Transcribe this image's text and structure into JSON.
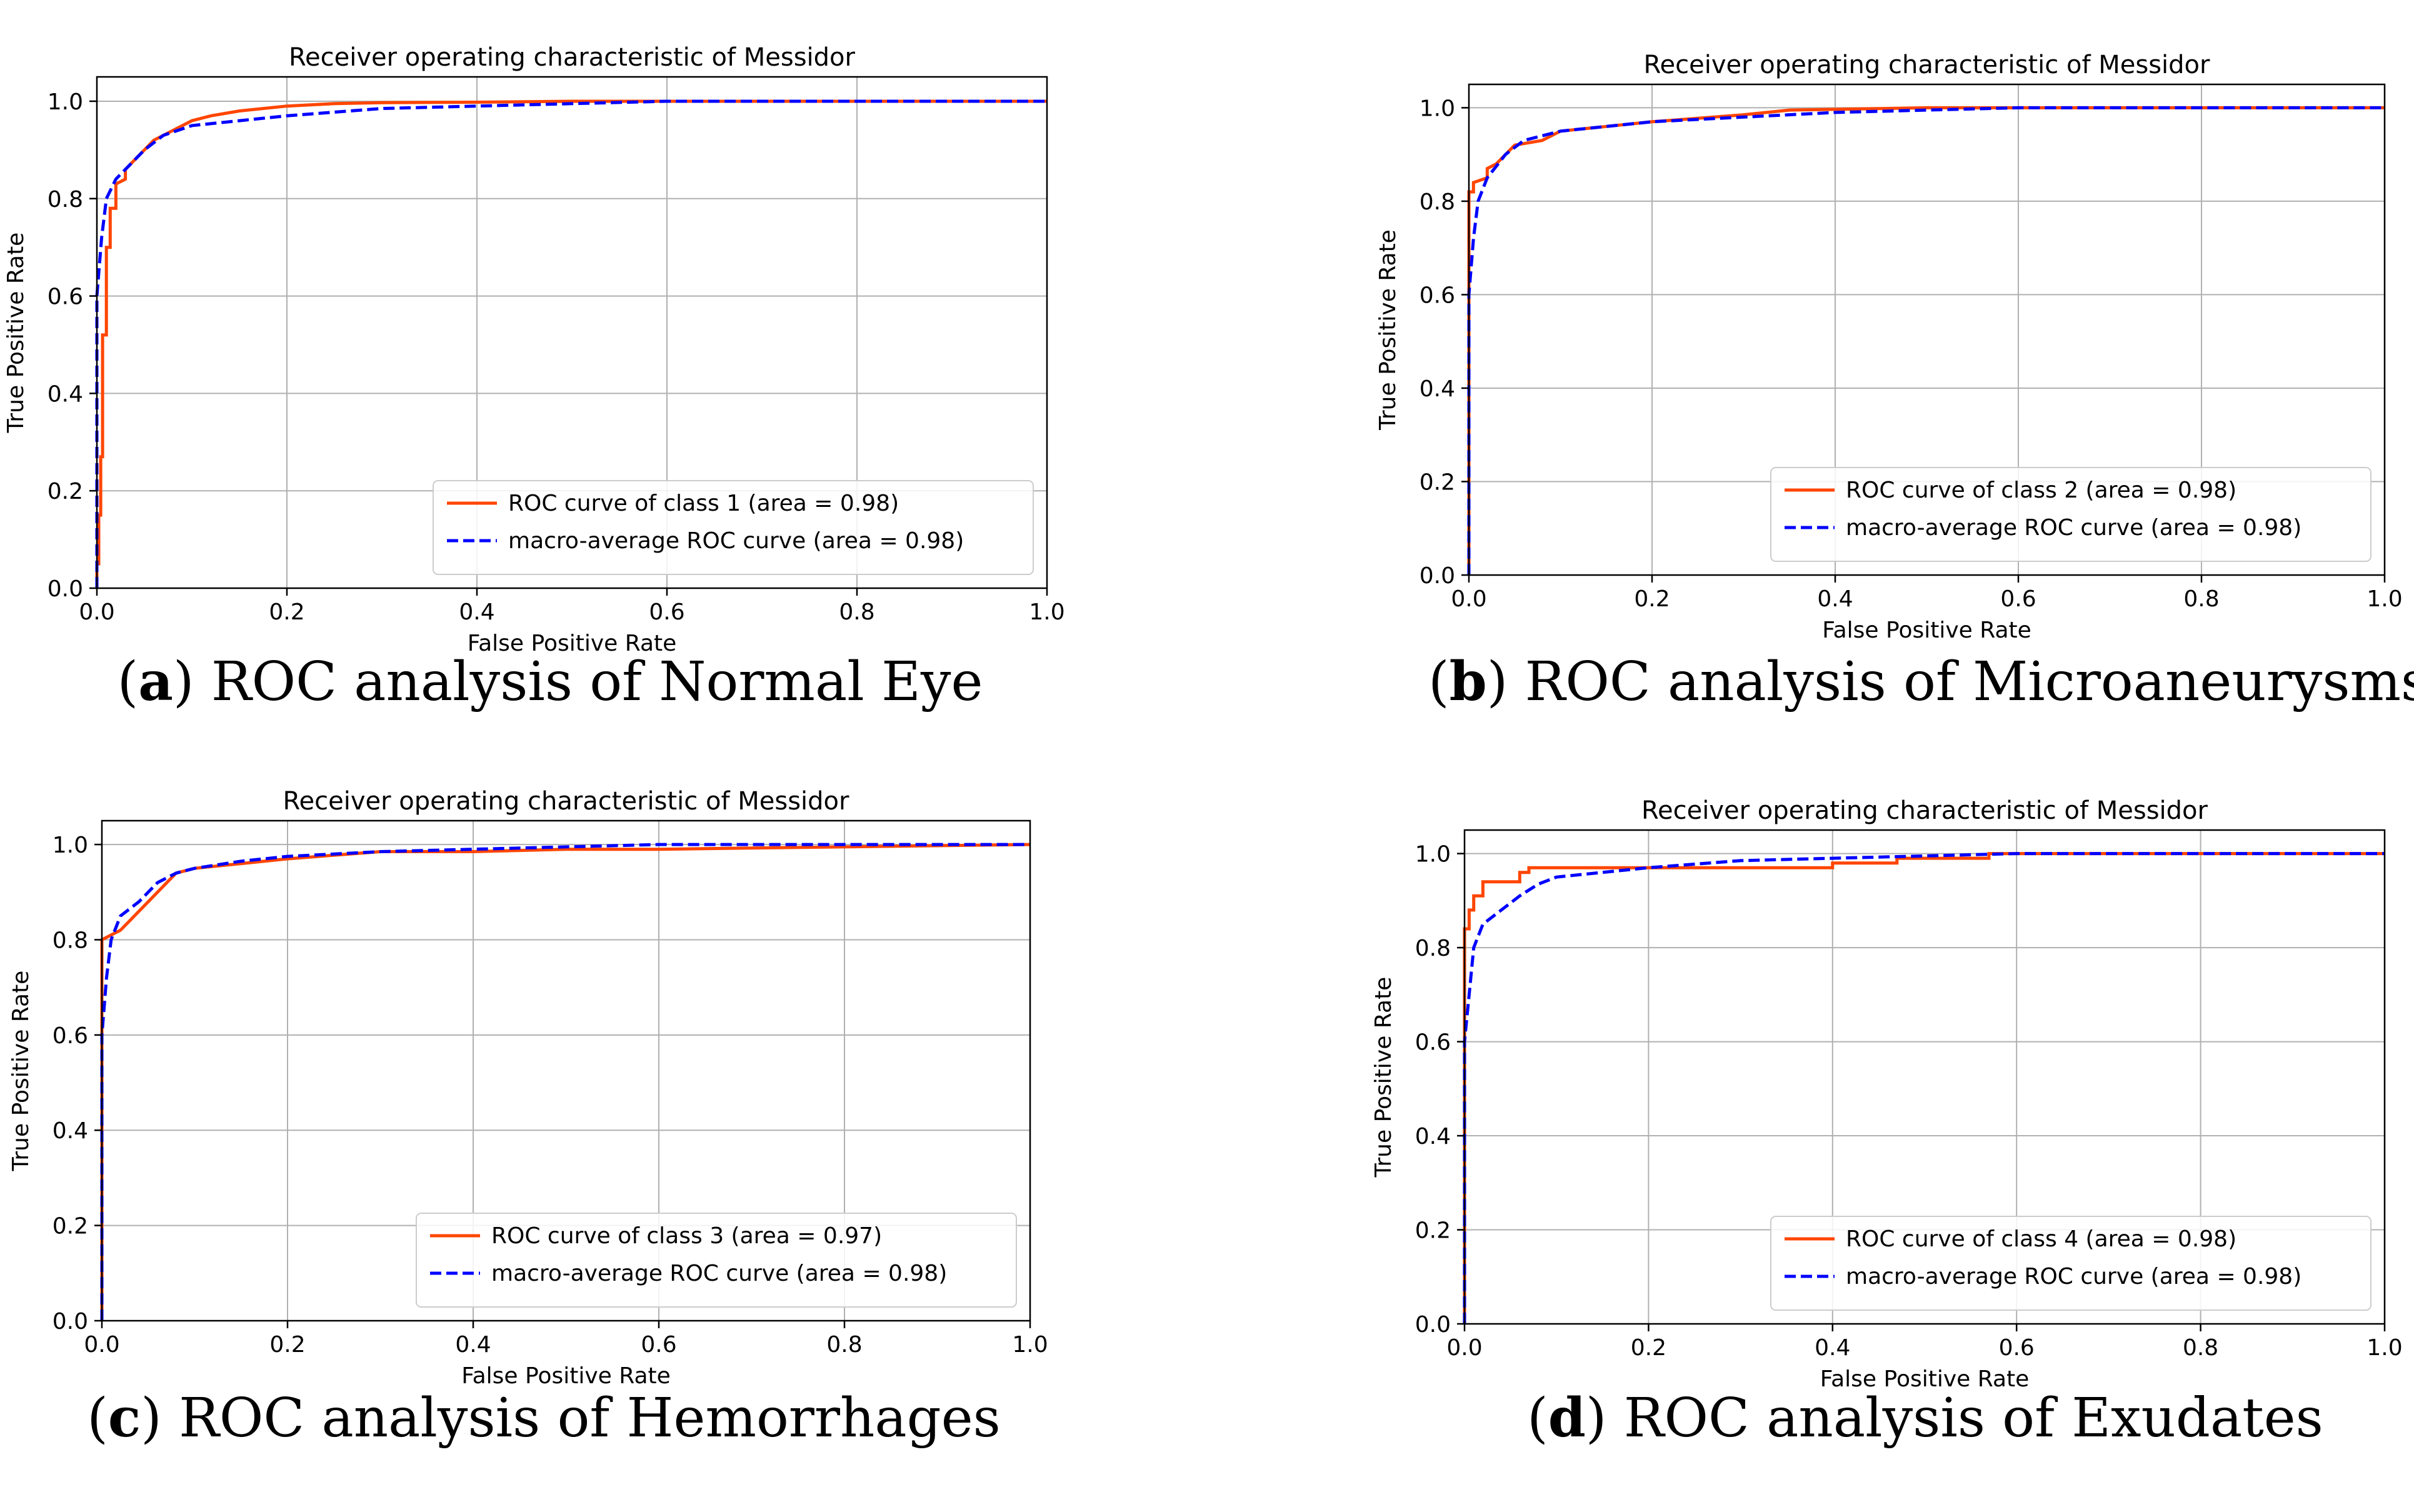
{
  "captions": [
    {
      "letter": "a",
      "text": "ROC analysis of Normal Eye"
    },
    {
      "letter": "b",
      "text": "ROC analysis of Microaneurysms"
    },
    {
      "letter": "c",
      "text": "ROC analysis of Hemorrhages"
    },
    {
      "letter": "d",
      "text": "ROC analysis of Exudates"
    }
  ],
  "chart_data": [
    {
      "type": "line",
      "title": "Receiver operating characteristic of Messidor",
      "xlabel": "False Positive Rate",
      "ylabel": "True Positive Rate",
      "xlim": [
        0,
        1.0
      ],
      "ylim": [
        0,
        1.05
      ],
      "xticks": [
        "0.0",
        "0.2",
        "0.4",
        "0.6",
        "0.8",
        "1.0"
      ],
      "yticks": [
        "0.0",
        "0.2",
        "0.4",
        "0.6",
        "0.8",
        "1.0"
      ],
      "grid": true,
      "legend": "lower-right",
      "series": [
        {
          "name": "ROC curve of class 1 (area = 0.98)",
          "color": "#ff4500",
          "style": "solid",
          "x": [
            0,
            0,
            0.002,
            0.002,
            0.004,
            0.004,
            0.006,
            0.006,
            0.01,
            0.01,
            0.014,
            0.014,
            0.02,
            0.02,
            0.03,
            0.03,
            0.04,
            0.05,
            0.06,
            0.08,
            0.1,
            0.12,
            0.15,
            0.2,
            0.25,
            0.3,
            0.4,
            0.5,
            0.6,
            0.8,
            1.0
          ],
          "y": [
            0,
            0.05,
            0.05,
            0.15,
            0.15,
            0.27,
            0.27,
            0.52,
            0.52,
            0.7,
            0.7,
            0.78,
            0.78,
            0.83,
            0.84,
            0.86,
            0.88,
            0.9,
            0.92,
            0.94,
            0.96,
            0.97,
            0.98,
            0.99,
            0.995,
            0.997,
            0.998,
            1.0,
            1.0,
            1.0,
            1.0
          ]
        },
        {
          "name": "macro-average ROC curve (area = 0.98)",
          "color": "#0000ff",
          "style": "dashed",
          "x": [
            0,
            0,
            0.005,
            0.01,
            0.02,
            0.03,
            0.05,
            0.07,
            0.1,
            0.15,
            0.2,
            0.3,
            0.4,
            0.5,
            0.6,
            0.8,
            1.0
          ],
          "y": [
            0,
            0.6,
            0.72,
            0.8,
            0.84,
            0.86,
            0.9,
            0.93,
            0.95,
            0.96,
            0.97,
            0.985,
            0.99,
            0.995,
            1.0,
            1.0,
            1.0
          ]
        }
      ]
    },
    {
      "type": "line",
      "title": "Receiver operating characteristic of Messidor",
      "xlabel": "False Positive Rate",
      "ylabel": "True Positive Rate",
      "xlim": [
        0,
        1.0
      ],
      "ylim": [
        0,
        1.05
      ],
      "xticks": [
        "0.0",
        "0.2",
        "0.4",
        "0.6",
        "0.8",
        "1.0"
      ],
      "yticks": [
        "0.0",
        "0.2",
        "0.4",
        "0.6",
        "0.8",
        "1.0"
      ],
      "grid": true,
      "legend": "lower-right",
      "series": [
        {
          "name": "ROC curve of class 2 (area = 0.98)",
          "color": "#ff4500",
          "style": "solid",
          "x": [
            0,
            0,
            0.005,
            0.005,
            0.02,
            0.02,
            0.03,
            0.04,
            0.05,
            0.08,
            0.1,
            0.15,
            0.2,
            0.3,
            0.35,
            0.5,
            0.6,
            1.0
          ],
          "y": [
            0,
            0.82,
            0.82,
            0.84,
            0.85,
            0.87,
            0.88,
            0.9,
            0.92,
            0.93,
            0.95,
            0.96,
            0.97,
            0.985,
            0.995,
            1.0,
            1.0,
            1.0
          ]
        },
        {
          "name": "macro-average ROC curve (area = 0.98)",
          "color": "#0000ff",
          "style": "dashed",
          "x": [
            0,
            0,
            0.005,
            0.01,
            0.02,
            0.04,
            0.06,
            0.1,
            0.15,
            0.2,
            0.3,
            0.4,
            0.5,
            0.6,
            0.8,
            1.0
          ],
          "y": [
            0,
            0.6,
            0.72,
            0.8,
            0.85,
            0.9,
            0.93,
            0.95,
            0.96,
            0.97,
            0.98,
            0.99,
            0.995,
            1.0,
            1.0,
            1.0
          ]
        }
      ]
    },
    {
      "type": "line",
      "title": "Receiver operating characteristic of Messidor",
      "xlabel": "False Positive Rate",
      "ylabel": "True Positive Rate",
      "xlim": [
        0,
        1.0
      ],
      "ylim": [
        0,
        1.05
      ],
      "xticks": [
        "0.0",
        "0.2",
        "0.4",
        "0.6",
        "0.8",
        "1.0"
      ],
      "yticks": [
        "0.0",
        "0.2",
        "0.4",
        "0.6",
        "0.8",
        "1.0"
      ],
      "grid": true,
      "legend": "lower-right",
      "series": [
        {
          "name": "ROC curve of class 3 (area = 0.97)",
          "color": "#ff4500",
          "style": "solid",
          "x": [
            0,
            0,
            0.01,
            0.02,
            0.03,
            0.04,
            0.05,
            0.06,
            0.08,
            0.1,
            0.15,
            0.2,
            0.3,
            0.4,
            0.5,
            0.6,
            0.8,
            1.0
          ],
          "y": [
            0,
            0.8,
            0.81,
            0.82,
            0.84,
            0.86,
            0.88,
            0.9,
            0.94,
            0.95,
            0.96,
            0.97,
            0.985,
            0.985,
            0.99,
            0.99,
            0.995,
            1.0
          ]
        },
        {
          "name": "macro-average ROC curve (area = 0.98)",
          "color": "#0000ff",
          "style": "dashed",
          "x": [
            0,
            0,
            0.005,
            0.01,
            0.02,
            0.04,
            0.06,
            0.08,
            0.1,
            0.15,
            0.2,
            0.3,
            0.4,
            0.5,
            0.6,
            0.8,
            1.0
          ],
          "y": [
            0,
            0.6,
            0.72,
            0.8,
            0.85,
            0.88,
            0.92,
            0.94,
            0.95,
            0.965,
            0.975,
            0.985,
            0.99,
            0.995,
            1.0,
            1.0,
            1.0
          ]
        }
      ]
    },
    {
      "type": "line",
      "title": "Receiver operating characteristic of Messidor",
      "xlabel": "False Positive Rate",
      "ylabel": "True Positive Rate",
      "xlim": [
        0,
        1.0
      ],
      "ylim": [
        0,
        1.05
      ],
      "xticks": [
        "0.0",
        "0.2",
        "0.4",
        "0.6",
        "0.8",
        "1.0"
      ],
      "yticks": [
        "0.0",
        "0.2",
        "0.4",
        "0.6",
        "0.8",
        "1.0"
      ],
      "grid": true,
      "legend": "lower-right",
      "series": [
        {
          "name": "ROC curve of class 4 (area = 0.98)",
          "color": "#ff4500",
          "style": "solid",
          "x": [
            0,
            0,
            0.005,
            0.005,
            0.01,
            0.01,
            0.02,
            0.02,
            0.06,
            0.06,
            0.07,
            0.07,
            0.4,
            0.4,
            0.47,
            0.47,
            0.57,
            0.57,
            1.0
          ],
          "y": [
            0,
            0.84,
            0.84,
            0.88,
            0.88,
            0.91,
            0.91,
            0.94,
            0.94,
            0.96,
            0.96,
            0.97,
            0.97,
            0.98,
            0.98,
            0.99,
            0.99,
            1.0,
            1.0
          ]
        },
        {
          "name": "macro-average ROC curve (area = 0.98)",
          "color": "#0000ff",
          "style": "dashed",
          "x": [
            0,
            0,
            0.005,
            0.01,
            0.02,
            0.04,
            0.06,
            0.08,
            0.1,
            0.15,
            0.2,
            0.3,
            0.4,
            0.5,
            0.6,
            0.8,
            1.0
          ],
          "y": [
            0,
            0.6,
            0.7,
            0.8,
            0.85,
            0.88,
            0.91,
            0.935,
            0.95,
            0.96,
            0.97,
            0.985,
            0.99,
            0.995,
            1.0,
            1.0,
            1.0
          ]
        }
      ]
    }
  ]
}
